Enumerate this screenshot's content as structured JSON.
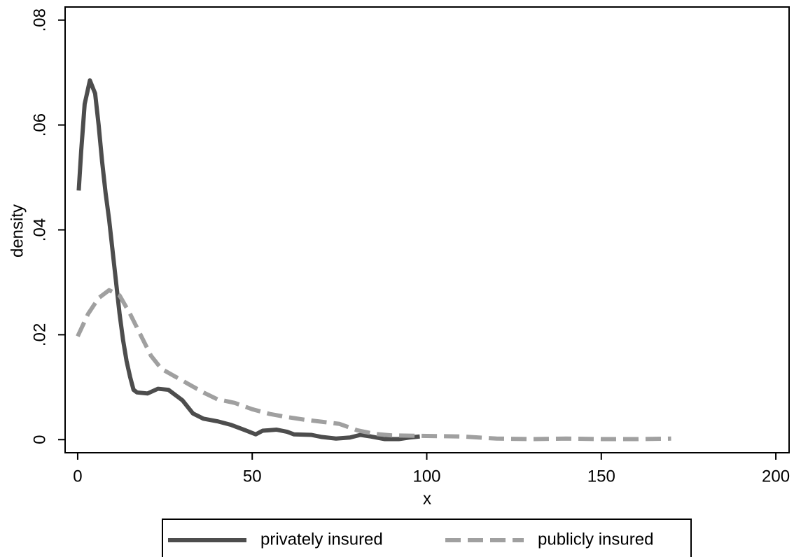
{
  "chart_data": {
    "type": "line",
    "xlabel": "x",
    "ylabel": "density",
    "xlim": [
      -3.6,
      203.8
    ],
    "ylim": [
      -0.0025,
      0.0825
    ],
    "xticks": [
      0,
      50,
      100,
      150,
      200
    ],
    "yticks": [
      0,
      {
        "value": 0.02,
        "label": ".02"
      },
      {
        "value": 0.04,
        "label": ".04"
      },
      {
        "value": 0.06,
        "label": ".06"
      },
      {
        "value": 0.08,
        "label": ".08"
      }
    ],
    "grid": false,
    "legend": "bottom",
    "series": [
      {
        "name": "privately insured",
        "color": "#4d4d4d",
        "style": "solid",
        "x": [
          0.3,
          1,
          2,
          3.5,
          5,
          6,
          7,
          8,
          9,
          10,
          11,
          12,
          13,
          14,
          15,
          16,
          17,
          20,
          23,
          26,
          28,
          30,
          33,
          36,
          40,
          44,
          48,
          51,
          53,
          57,
          60,
          62,
          67,
          70,
          74,
          78,
          81,
          84,
          88,
          92,
          95,
          98
        ],
        "values": [
          0.0475,
          0.055,
          0.064,
          0.0685,
          0.066,
          0.06,
          0.053,
          0.047,
          0.042,
          0.036,
          0.03,
          0.024,
          0.019,
          0.015,
          0.012,
          0.0095,
          0.009,
          0.0088,
          0.0097,
          0.0095,
          0.0085,
          0.0075,
          0.005,
          0.004,
          0.0035,
          0.0028,
          0.0018,
          0.001,
          0.0017,
          0.0019,
          0.0015,
          0.001,
          0.0009,
          0.0005,
          0.0002,
          0.0004,
          0.0009,
          0.0006,
          0.0001,
          0.0001,
          0.0004,
          0.0006
        ]
      },
      {
        "name": "publicly insured",
        "color": "#a0a0a0",
        "style": "dashed",
        "x": [
          0,
          3,
          6,
          9,
          12,
          15,
          18,
          21,
          24,
          28,
          32,
          36,
          40,
          45,
          50,
          55,
          60,
          65,
          70,
          75,
          80,
          85,
          90,
          100,
          110,
          120,
          130,
          140,
          150,
          160,
          170
        ],
        "values": [
          0.0197,
          0.024,
          0.027,
          0.0285,
          0.0275,
          0.024,
          0.02,
          0.016,
          0.0135,
          0.012,
          0.0105,
          0.009,
          0.0077,
          0.007,
          0.0058,
          0.0049,
          0.0043,
          0.0038,
          0.0034,
          0.003,
          0.0018,
          0.0011,
          0.0008,
          0.0007,
          0.0006,
          0.0002,
          0.0001,
          0.0002,
          0.0001,
          0.0001,
          0.0002
        ]
      }
    ]
  }
}
